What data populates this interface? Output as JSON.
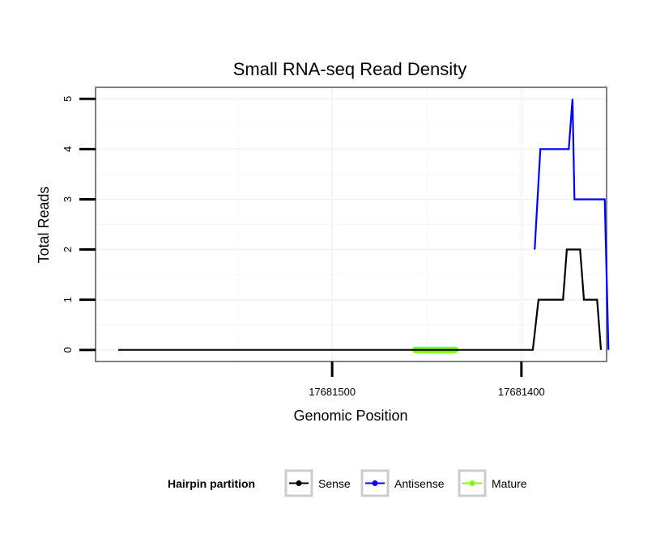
{
  "chart_data": {
    "type": "line",
    "title": "Small RNA-seq Read Density",
    "xlabel": "Genomic Position",
    "ylabel": "Total Reads",
    "x_reversed": true,
    "xlim": [
      17681625,
      17681355
    ],
    "ylim": [
      -0.23,
      5.23
    ],
    "x_ticks": [
      17681500,
      17681400
    ],
    "x_tick_labels": [
      "17681500",
      "17681400"
    ],
    "y_ticks": [
      0,
      1,
      2,
      3,
      4,
      5
    ],
    "y_tick_labels": [
      "0",
      "1",
      "2",
      "3",
      "4",
      "5"
    ],
    "grid": true,
    "legend_position": "bottom",
    "legend_title": "Hairpin partition",
    "series": [
      {
        "name": "Sense",
        "color": "#000000",
        "x": [
          17681613,
          17681405,
          17681394,
          17681391,
          17681378,
          17681376,
          17681369,
          17681367,
          17681360,
          17681358
        ],
        "y": [
          0,
          0,
          0,
          1,
          1,
          2,
          2,
          1,
          1,
          0
        ]
      },
      {
        "name": "Antisense",
        "color": "#0000FF",
        "x": [
          17681393,
          17681390,
          17681375,
          17681373,
          17681372,
          17681356,
          17681354
        ],
        "y": [
          2,
          4,
          4,
          5,
          3,
          3,
          0
        ]
      },
      {
        "name": "Mature",
        "color": "#7FFF00",
        "x": [
          17681456,
          17681435
        ],
        "y": [
          0,
          0
        ]
      }
    ]
  }
}
